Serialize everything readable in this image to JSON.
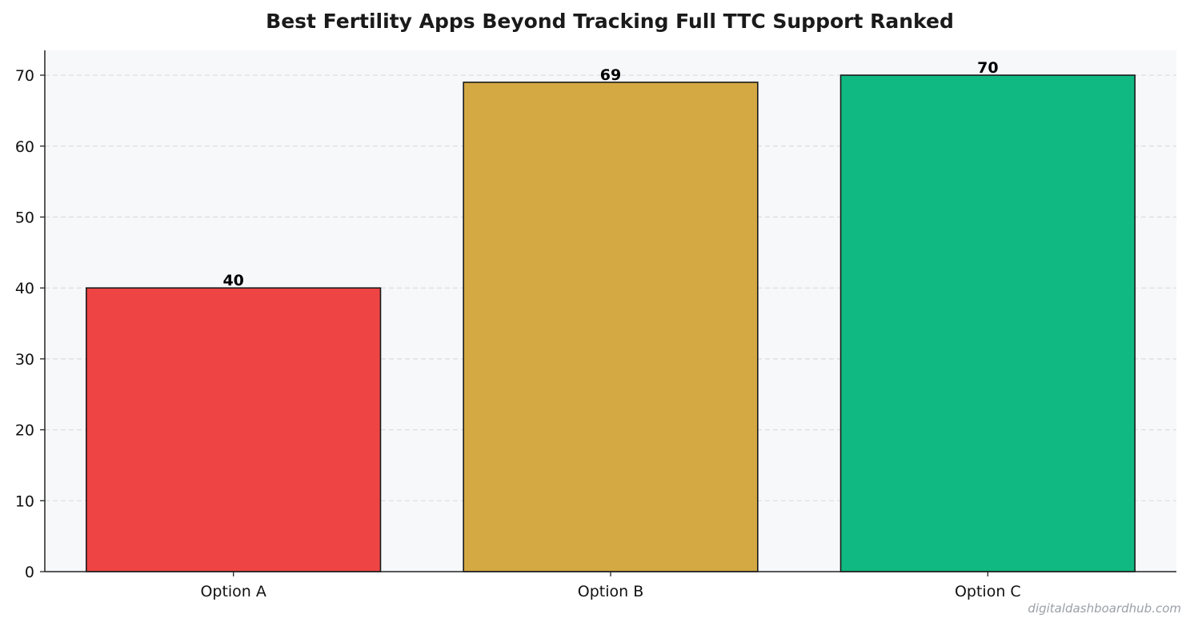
{
  "chart_data": {
    "type": "bar",
    "title": "Best Fertility Apps Beyond Tracking  Full TTC Support Ranked",
    "xlabel": "",
    "ylabel": "",
    "categories": [
      "Option A",
      "Option B",
      "Option C"
    ],
    "values": [
      40,
      69,
      70
    ],
    "value_labels": [
      "40",
      "69",
      "70"
    ],
    "colors": [
      "#ef4444",
      "#d4a843",
      "#10b981"
    ],
    "ylim": [
      0,
      73.5
    ],
    "yticks": [
      0,
      10,
      20,
      30,
      40,
      50,
      60,
      70
    ],
    "ytick_labels": [
      "0",
      "10",
      "20",
      "30",
      "40",
      "50",
      "60",
      "70"
    ],
    "grid": "horizontal dashed",
    "legend": "none",
    "background_color": "#f7f8fa"
  },
  "watermark": "digitaldashboardhub.com"
}
